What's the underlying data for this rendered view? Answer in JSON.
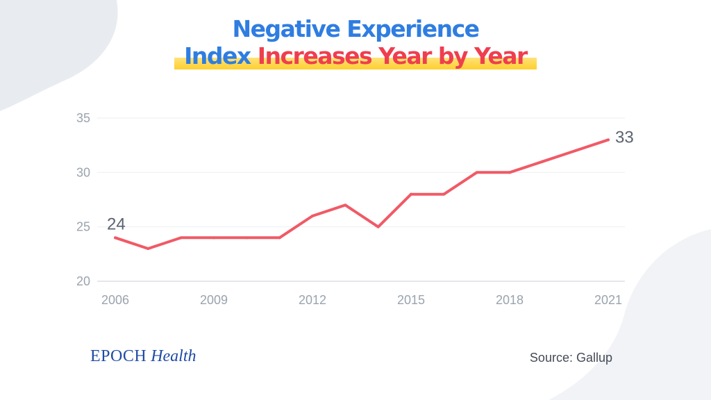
{
  "header": {
    "title_line1": "Negative Experience",
    "title_line2_part1": "Index",
    "title_line2_part2": "Increases Year by Year"
  },
  "colors": {
    "title_blue": "#2f7de1",
    "title_red": "#ef3e4f",
    "highlight_yellow": "#ffcf2e",
    "line": "#f05a66",
    "axis_text": "#9aa3ad",
    "label_text": "#5b6470",
    "brand_blue": "#1f4ba5"
  },
  "chart_data": {
    "type": "line",
    "title": "Negative Experience Index Increases Year by Year",
    "xlabel": "",
    "ylabel": "",
    "x": [
      2006,
      2007,
      2008,
      2009,
      2010,
      2011,
      2012,
      2013,
      2014,
      2015,
      2016,
      2017,
      2018,
      2019,
      2020,
      2021
    ],
    "series": [
      {
        "values": [
          24,
          23,
          24,
          24,
          24,
          24,
          26,
          27,
          25,
          28,
          28,
          30,
          30,
          31,
          32,
          33
        ]
      }
    ],
    "xticks": [
      "2006",
      "2009",
      "2012",
      "2015",
      "2018",
      "2021"
    ],
    "yticks": [
      "20",
      "25",
      "30",
      "35"
    ],
    "ylim": [
      20,
      35
    ],
    "grid": true,
    "annotations": [
      {
        "x": 2006,
        "text": "24"
      },
      {
        "x": 2021,
        "text": "33"
      }
    ]
  },
  "footer": {
    "brand_part1": "EPOCH",
    "brand_part2": "Health",
    "source": "Source: Gallup"
  }
}
